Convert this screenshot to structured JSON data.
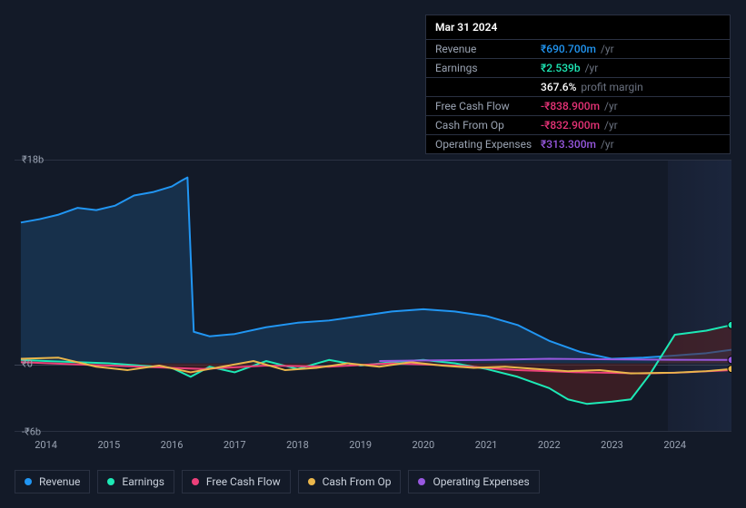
{
  "tooltip": {
    "date": "Mar 31 2024",
    "rows": [
      {
        "label": "Revenue",
        "cls": "val-revenue",
        "amt": "₹690.700m",
        "unit": "/yr"
      },
      {
        "label": "Earnings",
        "cls": "val-earnings",
        "amt": "₹2.539b",
        "unit": "/yr"
      },
      {
        "label": "",
        "cls": "val-margin",
        "amt": "367.6%",
        "unit": "profit margin"
      },
      {
        "label": "Free Cash Flow",
        "cls": "val-fcf",
        "amt": "-₹838.900m",
        "unit": "/yr"
      },
      {
        "label": "Cash From Op",
        "cls": "val-cfo",
        "amt": "-₹832.900m",
        "unit": "/yr"
      },
      {
        "label": "Operating Expenses",
        "cls": "val-opex",
        "amt": "₹313.300m",
        "unit": "/yr"
      }
    ]
  },
  "chart": {
    "type": "area-line",
    "background_color": "#131a28",
    "grid_color": "#2a3142",
    "zero_line_color": "#3a4252",
    "future_band_start_year": 2024,
    "future_band_color": "rgba(32,44,72,0.5)",
    "x": {
      "min": 2013.5,
      "max": 2024.9,
      "ticks": [
        2014,
        2015,
        2016,
        2017,
        2018,
        2019,
        2020,
        2021,
        2022,
        2023,
        2024
      ]
    },
    "y": {
      "min": -6,
      "max": 18,
      "unit": "b",
      "ticks": [
        {
          "v": 18,
          "label": "₹18b"
        },
        {
          "v": 0,
          "label": "₹0"
        },
        {
          "v": -6,
          "label": "-₹6b"
        }
      ]
    },
    "series": [
      {
        "name": "Revenue",
        "color": "#2196f3",
        "fill": "#1a3a5a",
        "fill_opacity": 0.7,
        "points": [
          [
            2013.6,
            12.5
          ],
          [
            2013.9,
            12.8
          ],
          [
            2014.2,
            13.2
          ],
          [
            2014.5,
            13.8
          ],
          [
            2014.8,
            13.6
          ],
          [
            2015.1,
            14.0
          ],
          [
            2015.4,
            14.9
          ],
          [
            2015.7,
            15.2
          ],
          [
            2016.0,
            15.7
          ],
          [
            2016.15,
            16.2
          ],
          [
            2016.25,
            16.5
          ],
          [
            2016.35,
            2.8
          ],
          [
            2016.6,
            2.4
          ],
          [
            2017.0,
            2.6
          ],
          [
            2017.5,
            3.2
          ],
          [
            2018.0,
            3.6
          ],
          [
            2018.5,
            3.8
          ],
          [
            2019.0,
            4.2
          ],
          [
            2019.5,
            4.6
          ],
          [
            2020.0,
            4.8
          ],
          [
            2020.5,
            4.6
          ],
          [
            2021.0,
            4.2
          ],
          [
            2021.5,
            3.4
          ],
          [
            2022.0,
            2.0
          ],
          [
            2022.5,
            1.0
          ],
          [
            2023.0,
            0.4
          ],
          [
            2023.5,
            0.5
          ],
          [
            2024.0,
            0.69
          ],
          [
            2024.5,
            0.9
          ],
          [
            2024.9,
            1.2
          ]
        ]
      },
      {
        "name": "Earnings",
        "color": "#1de9b6",
        "fill": "#5a2020",
        "fill_opacity": 0.55,
        "points": [
          [
            2013.6,
            0.3
          ],
          [
            2014.0,
            0.2
          ],
          [
            2014.5,
            0.1
          ],
          [
            2015.0,
            0.0
          ],
          [
            2015.5,
            -0.2
          ],
          [
            2016.0,
            -0.4
          ],
          [
            2016.3,
            -1.2
          ],
          [
            2016.6,
            -0.3
          ],
          [
            2017.0,
            -0.8
          ],
          [
            2017.5,
            0.2
          ],
          [
            2018.0,
            -0.5
          ],
          [
            2018.5,
            0.3
          ],
          [
            2019.0,
            -0.2
          ],
          [
            2019.5,
            0.1
          ],
          [
            2020.0,
            0.3
          ],
          [
            2020.5,
            0.0
          ],
          [
            2021.0,
            -0.5
          ],
          [
            2021.5,
            -1.2
          ],
          [
            2022.0,
            -2.2
          ],
          [
            2022.3,
            -3.2
          ],
          [
            2022.6,
            -3.6
          ],
          [
            2023.0,
            -3.4
          ],
          [
            2023.3,
            -3.2
          ],
          [
            2023.6,
            -1.0
          ],
          [
            2024.0,
            2.54
          ],
          [
            2024.5,
            2.9
          ],
          [
            2024.9,
            3.4
          ]
        ]
      },
      {
        "name": "Free Cash Flow",
        "color": "#ec407a",
        "fill": null,
        "points": [
          [
            2013.6,
            0.1
          ],
          [
            2014.5,
            -0.1
          ],
          [
            2015.5,
            -0.3
          ],
          [
            2016.5,
            -0.5
          ],
          [
            2017.5,
            -0.2
          ],
          [
            2018.5,
            -0.3
          ],
          [
            2019.5,
            0.0
          ],
          [
            2020.5,
            -0.2
          ],
          [
            2021.5,
            -0.6
          ],
          [
            2022.5,
            -0.8
          ],
          [
            2023.5,
            -0.9
          ],
          [
            2024.0,
            -0.84
          ],
          [
            2024.9,
            -0.6
          ]
        ]
      },
      {
        "name": "Cash From Op",
        "color": "#eab64b",
        "fill": null,
        "points": [
          [
            2013.6,
            0.4
          ],
          [
            2014.2,
            0.5
          ],
          [
            2014.8,
            -0.3
          ],
          [
            2015.3,
            -0.6
          ],
          [
            2015.8,
            -0.2
          ],
          [
            2016.3,
            -0.8
          ],
          [
            2016.8,
            -0.3
          ],
          [
            2017.3,
            0.2
          ],
          [
            2017.8,
            -0.6
          ],
          [
            2018.3,
            -0.4
          ],
          [
            2018.8,
            0.0
          ],
          [
            2019.3,
            -0.3
          ],
          [
            2019.8,
            0.1
          ],
          [
            2020.3,
            -0.2
          ],
          [
            2020.8,
            -0.4
          ],
          [
            2021.3,
            -0.3
          ],
          [
            2021.8,
            -0.5
          ],
          [
            2022.3,
            -0.7
          ],
          [
            2022.8,
            -0.6
          ],
          [
            2023.3,
            -0.9
          ],
          [
            2023.8,
            -0.85
          ],
          [
            2024.0,
            -0.83
          ],
          [
            2024.5,
            -0.7
          ],
          [
            2024.9,
            -0.5
          ]
        ]
      },
      {
        "name": "Operating Expenses",
        "color": "#9858e0",
        "fill": null,
        "points": [
          [
            2019.3,
            0.2
          ],
          [
            2020.0,
            0.25
          ],
          [
            2021.0,
            0.3
          ],
          [
            2022.0,
            0.4
          ],
          [
            2023.0,
            0.35
          ],
          [
            2024.0,
            0.31
          ],
          [
            2024.9,
            0.3
          ]
        ]
      }
    ],
    "marker": {
      "x": 2024.9,
      "dots": [
        {
          "series": "Earnings",
          "color": "#1de9b6",
          "y": 3.4
        },
        {
          "series": "Operating Expenses",
          "color": "#9858e0",
          "y": 0.3
        },
        {
          "series": "Cash From Op",
          "color": "#eab64b",
          "y": -0.5
        }
      ]
    }
  },
  "legend": [
    {
      "label": "Revenue",
      "color": "#2196f3"
    },
    {
      "label": "Earnings",
      "color": "#1de9b6"
    },
    {
      "label": "Free Cash Flow",
      "color": "#ec407a"
    },
    {
      "label": "Cash From Op",
      "color": "#eab64b"
    },
    {
      "label": "Operating Expenses",
      "color": "#9858e0"
    }
  ]
}
